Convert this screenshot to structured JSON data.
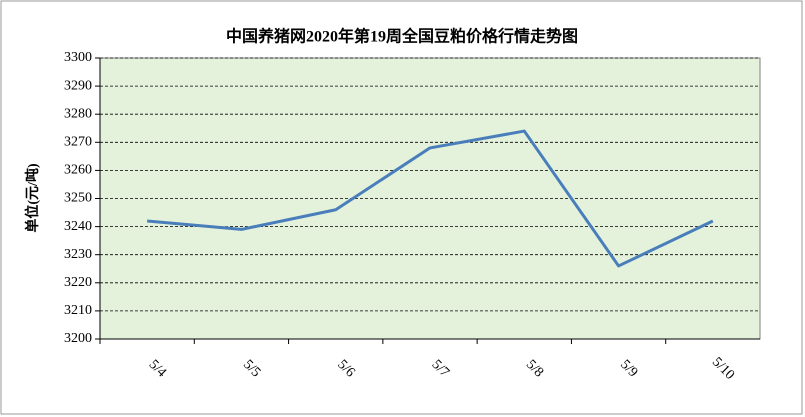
{
  "chart_data": {
    "type": "line",
    "title": "中国养猪网2020年第19周全国豆粕价格行情走势图",
    "y_label": "单位(元/吨)",
    "categories": [
      "5/4",
      "5/5",
      "5/6",
      "5/7",
      "5/8",
      "5/9",
      "5/10"
    ],
    "series": [
      {
        "color": "#4a7ebb",
        "values": [
          3242,
          3239,
          3246,
          3268,
          3274,
          3226,
          3242
        ]
      }
    ],
    "ylim": [
      3200,
      3300
    ],
    "yticks": [
      3200,
      3210,
      3220,
      3230,
      3240,
      3250,
      3260,
      3270,
      3280,
      3290,
      3300
    ],
    "grid": true,
    "plot_background": "#e4f2dc"
  }
}
